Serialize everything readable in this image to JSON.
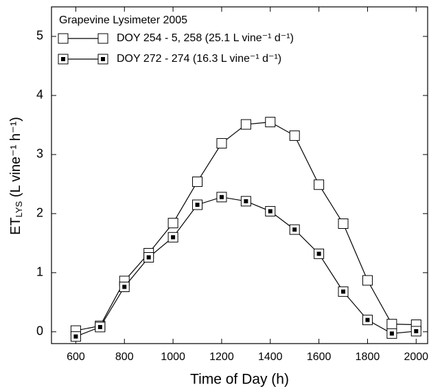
{
  "chart_data": {
    "type": "line",
    "legend_title": "Grapevine Lysimeter 2005",
    "x_label": "Time of Day (h)",
    "y_label": [
      "ET",
      "LYS",
      " (L vine⁻¹ h⁻¹)"
    ],
    "x": [
      600,
      700,
      800,
      900,
      1000,
      1100,
      1200,
      1300,
      1400,
      1500,
      1600,
      1700,
      1800,
      1900,
      2000
    ],
    "series": [
      {
        "name": "DOY 254 - 5, 258 (25.1 L vine⁻¹ d⁻¹)",
        "color": "#000000",
        "marker": "square-open",
        "values": [
          0.02,
          0.1,
          0.86,
          1.33,
          1.84,
          2.54,
          3.19,
          3.51,
          3.55,
          3.32,
          2.49,
          1.83,
          0.87,
          0.13,
          0.12
        ]
      },
      {
        "name": "DOY 272 - 274 (16.3 L vine⁻¹ d⁻¹)",
        "color": "#000000",
        "marker": "square-dot",
        "values": [
          -0.08,
          0.08,
          0.76,
          1.26,
          1.6,
          2.15,
          2.28,
          2.21,
          2.04,
          1.73,
          1.32,
          0.68,
          0.2,
          -0.03,
          0.01
        ]
      }
    ],
    "xlim": [
      500,
      2050
    ],
    "xticks": [
      600,
      800,
      1000,
      1200,
      1400,
      1600,
      1800,
      2000
    ],
    "ylim": [
      -0.2,
      5.5
    ],
    "yticks": [
      0,
      1,
      2,
      3,
      4,
      5
    ],
    "legend": "upper left"
  }
}
